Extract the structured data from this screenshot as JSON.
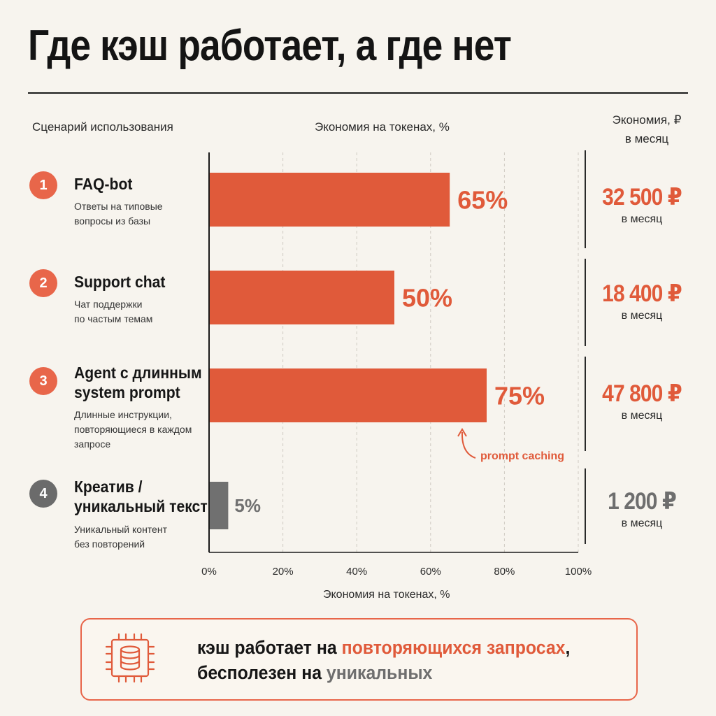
{
  "title": "Где кэш работает, а где нет",
  "headers": {
    "scenario": "Сценарий использования",
    "tokens": "Экономия на токенах, %",
    "rub_line1": "Экономия, ₽",
    "rub_line2": "в месяц"
  },
  "rows": [
    {
      "num": "1",
      "name": "FAQ-bot",
      "desc1": "Ответы на типовые",
      "desc2": "вопросы из базы",
      "desc3": "",
      "rub": "32 500 ₽",
      "rub_unit": "в месяц",
      "color": "#e05a3a",
      "num_color": "#e8664a"
    },
    {
      "num": "2",
      "name": "Support chat",
      "desc1": "Чат поддержки",
      "desc2": "по частым темам",
      "desc3": "",
      "rub": "18 400 ₽",
      "rub_unit": "в месяц",
      "color": "#e05a3a",
      "num_color": "#e8664a"
    },
    {
      "num": "3",
      "name": "Agent с длинным",
      "name2": "system prompt",
      "desc1": "Длинные инструкции,",
      "desc2": "повторяющиеся в каждом",
      "desc3": "запросе",
      "rub": "47 800 ₽",
      "rub_unit": "в месяц",
      "color": "#e05a3a",
      "num_color": "#e8664a"
    },
    {
      "num": "4",
      "name": "Креатив /",
      "name2": "уникальный текст",
      "desc1": "Уникальный контент",
      "desc2": "без повторений",
      "desc3": "",
      "rub": "1 200 ₽",
      "rub_unit": "в месяц",
      "color": "#6e6e6e",
      "num_color": "#6b6b6b"
    }
  ],
  "annotation": "prompt caching",
  "x_axis_label": "Экономия на токенах, %",
  "callout": {
    "part1": "кэш работает на ",
    "highlight1": "повторяющихся запросах",
    "part2": ",",
    "part3": "бесполезен на ",
    "highlight2": "уникальных",
    "icon": "database-chip-icon"
  },
  "chart_data": {
    "type": "bar",
    "orientation": "horizontal",
    "categories": [
      "FAQ-bot",
      "Support chat",
      "Agent с длинным system prompt",
      "Креатив / уникальный текст"
    ],
    "values": [
      65,
      50,
      75,
      5
    ],
    "value_labels": [
      "65%",
      "50%",
      "75%",
      "5%"
    ],
    "bar_colors": [
      "#e05a3a",
      "#e05a3a",
      "#e05a3a",
      "#707070"
    ],
    "label_colors": [
      "#e05a3a",
      "#e05a3a",
      "#e05a3a",
      "#707070"
    ],
    "xlim": [
      0,
      100
    ],
    "xticks": [
      0,
      20,
      40,
      60,
      80,
      100
    ],
    "xtick_labels": [
      "0%",
      "20%",
      "40%",
      "60%",
      "80%",
      "100%"
    ],
    "xlabel": "Экономия на токенах, %",
    "grid": "vertical dashed"
  }
}
